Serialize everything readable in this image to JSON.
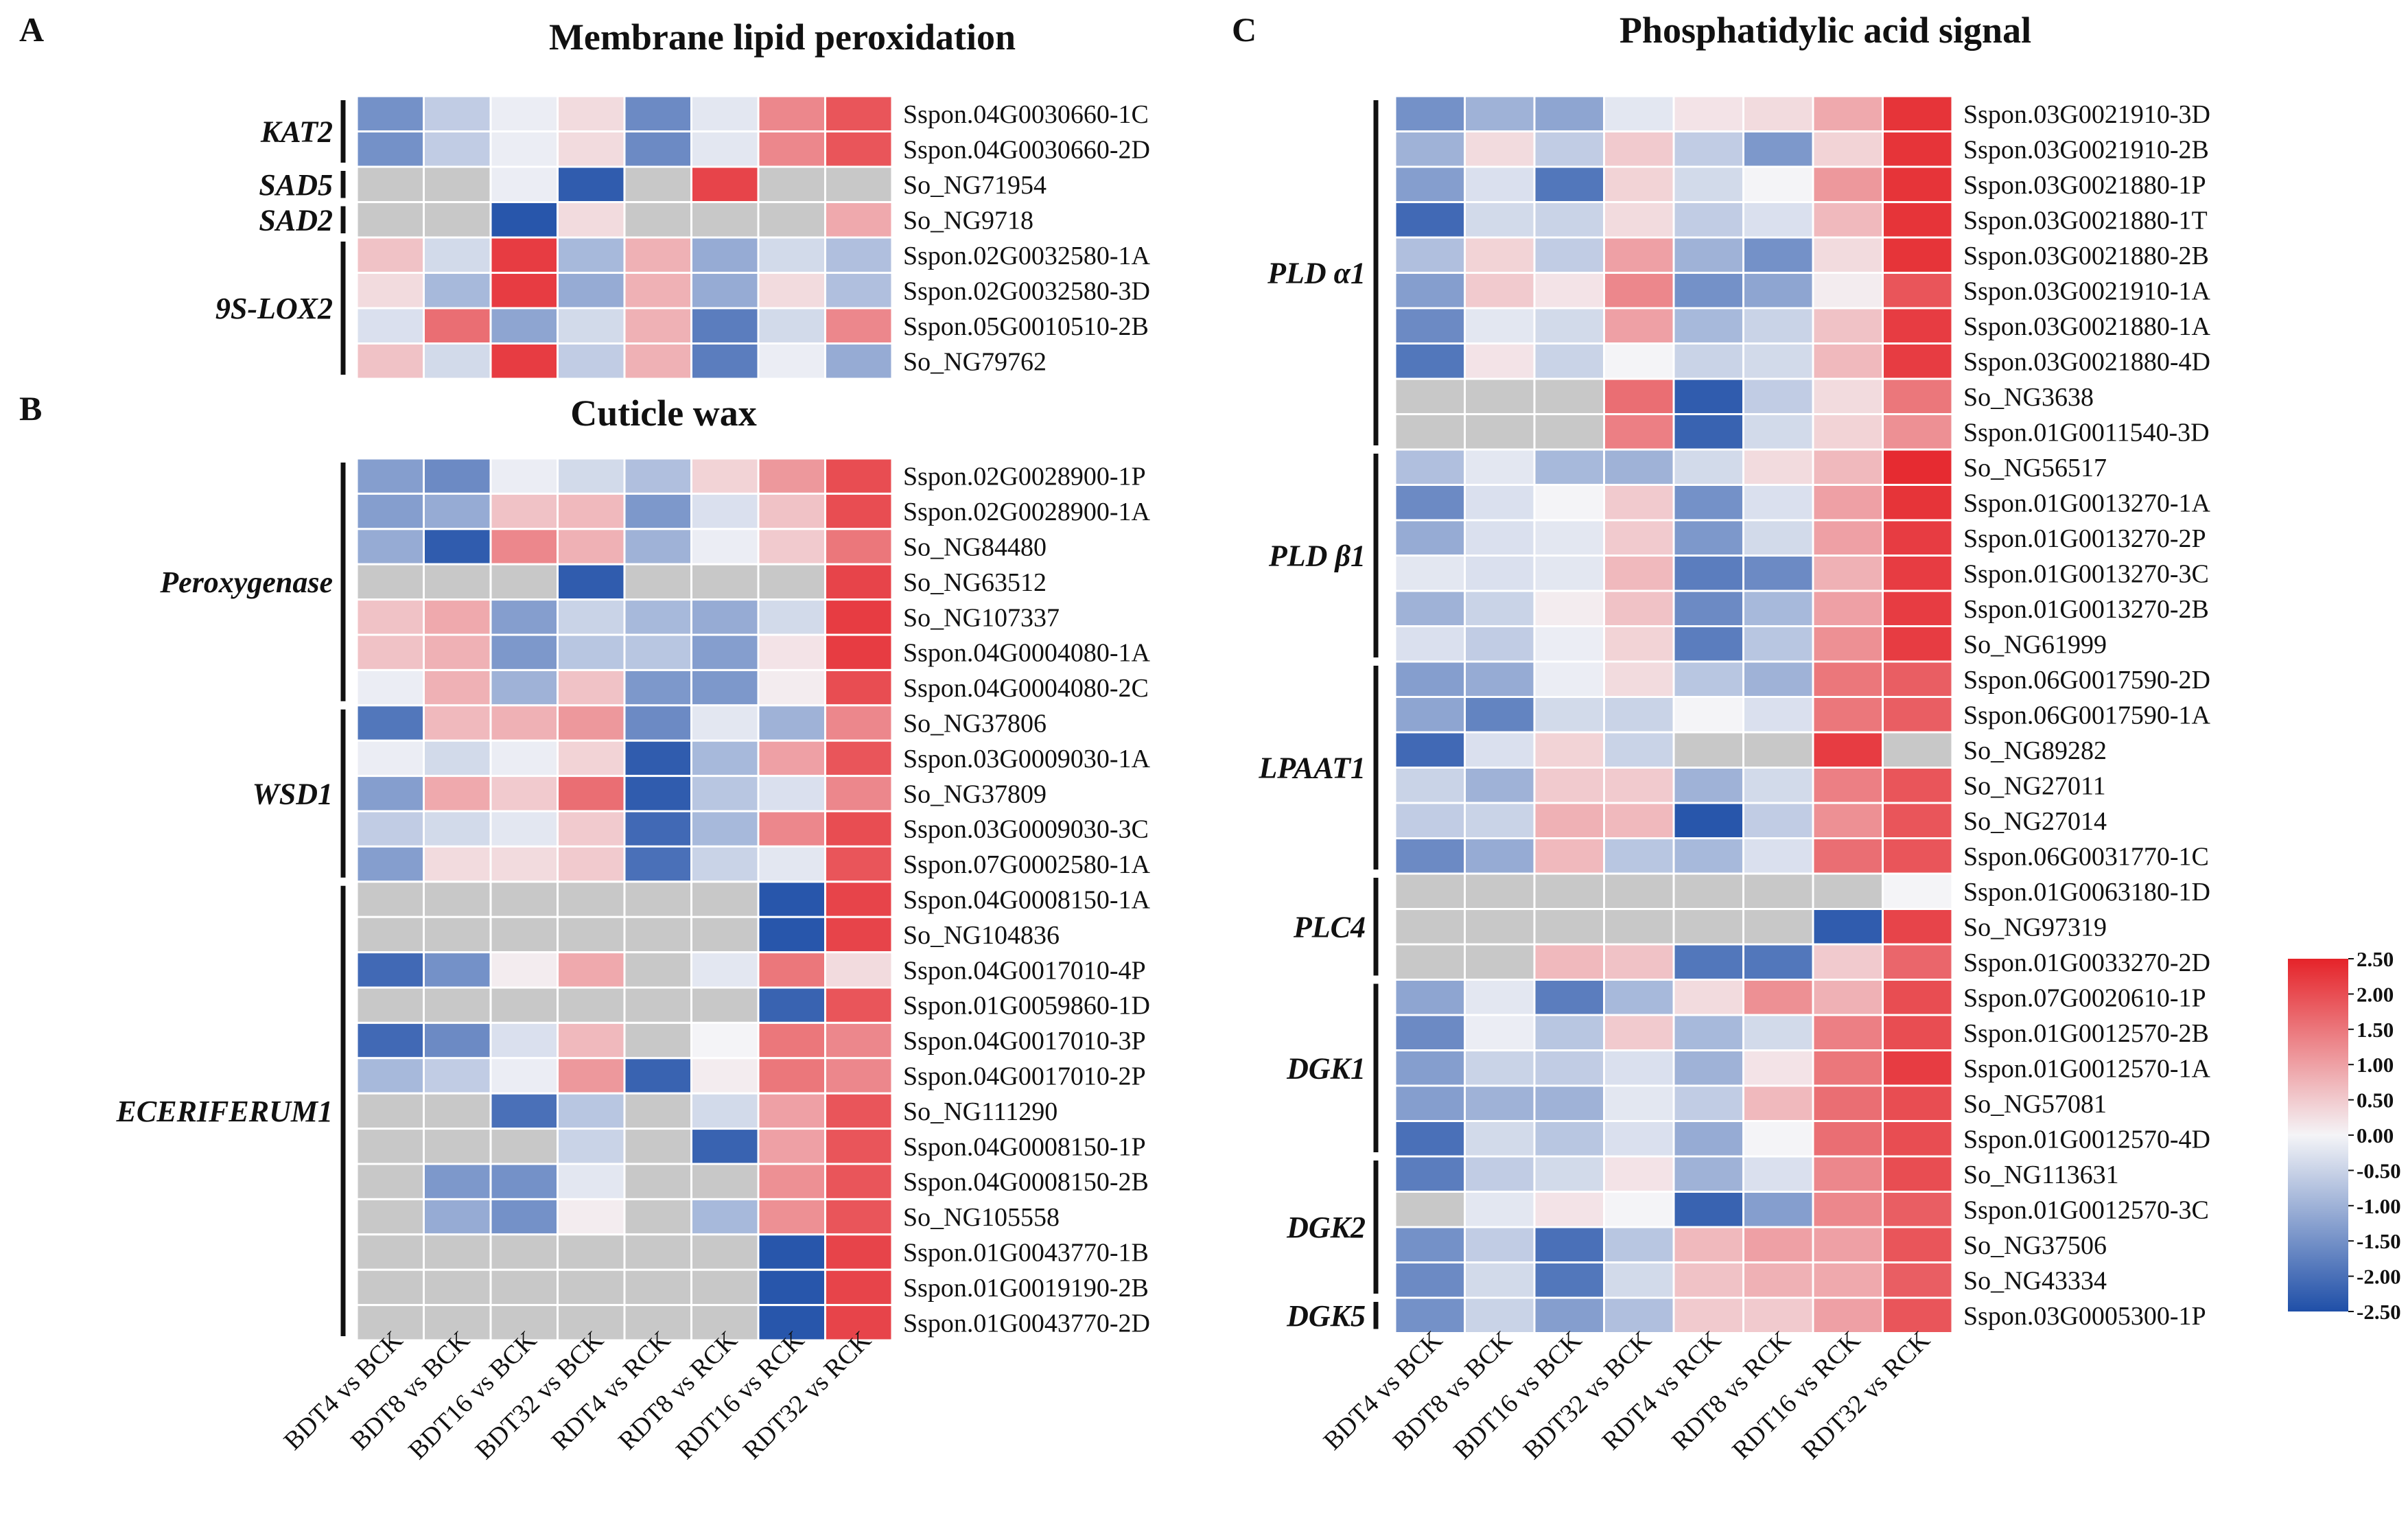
{
  "figure": {
    "colorscale": {
      "low_color": "#1f4fa8",
      "mid_color": "#f4f4f7",
      "high_color": "#e52329",
      "missing_color": "#c8c8c8",
      "min": -2.5,
      "max": 2.5,
      "tick_labels": [
        "2.50",
        "2.00",
        "1.50",
        "1.00",
        "0.50",
        "0.00",
        "-0.50",
        "-1.00",
        "-1.50",
        "-2.00",
        "-2.50"
      ]
    }
  },
  "chart_data": [
    {
      "type": "heatmap",
      "panel": "A",
      "title": "Membrane lipid peroxidation",
      "columns": [
        "BDT4 vs BCK",
        "BDT8 vs BCK",
        "BDT16 vs BCK",
        "BDT32 vs BCK",
        "RDT4 vs RCK",
        "RDT8 vs RCK",
        "RDT16 vs RCK",
        "RDT32 vs RCK"
      ],
      "show_column_labels": false,
      "rows": [
        "Sspon.04G0030660-1C",
        "Sspon.04G0030660-2D",
        "So_NG71954",
        "So_NG9718",
        "Sspon.02G0032580-1A",
        "Sspon.02G0032580-3D",
        "Sspon.05G0010510-2B",
        "So_NG79762"
      ],
      "groups": [
        {
          "label": "KAT2",
          "start": 0,
          "end": 1
        },
        {
          "label": "SAD5",
          "start": 2,
          "end": 2
        },
        {
          "label": "SAD2",
          "start": 3,
          "end": 3
        },
        {
          "label": "9S-LOX2",
          "start": 4,
          "end": 7
        }
      ],
      "values": [
        [
          -1.5,
          -0.6,
          -0.1,
          0.3,
          -1.6,
          -0.2,
          1.3,
          1.9
        ],
        [
          -1.5,
          -0.6,
          -0.1,
          0.3,
          -1.6,
          -0.2,
          1.3,
          1.9
        ],
        [
          null,
          null,
          -0.1,
          -2.3,
          null,
          2.1,
          null,
          null
        ],
        [
          null,
          null,
          -2.4,
          0.3,
          null,
          null,
          null,
          0.9
        ],
        [
          0.6,
          -0.4,
          2.2,
          -0.9,
          0.8,
          -1.1,
          -0.4,
          -0.8
        ],
        [
          0.3,
          -0.9,
          2.2,
          -1.1,
          0.8,
          -1.1,
          0.3,
          -0.8
        ],
        [
          -0.3,
          1.6,
          -1.2,
          -0.4,
          0.8,
          -1.8,
          -0.4,
          1.3
        ],
        [
          0.6,
          -0.4,
          2.2,
          -0.6,
          0.8,
          -1.8,
          -0.1,
          -1.1
        ]
      ]
    },
    {
      "type": "heatmap",
      "panel": "B",
      "title": "Cuticle wax",
      "columns": [
        "BDT4 vs BCK",
        "BDT8 vs BCK",
        "BDT16 vs BCK",
        "BDT32 vs BCK",
        "RDT4 vs RCK",
        "RDT8 vs RCK",
        "RDT16 vs RCK",
        "RDT32 vs RCK"
      ],
      "show_column_labels": true,
      "rows": [
        "Sspon.02G0028900-1P",
        "Sspon.02G0028900-1A",
        "So_NG84480",
        "So_NG63512",
        "So_NG107337",
        "Sspon.04G0004080-1A",
        "Sspon.04G0004080-2C",
        "So_NG37806",
        "Sspon.03G0009030-1A",
        "So_NG37809",
        "Sspon.03G0009030-3C",
        "Sspon.07G0002580-1A",
        "Sspon.04G0008150-1A",
        "So_NG104836",
        "Sspon.04G0017010-4P",
        "Sspon.01G0059860-1D",
        "Sspon.04G0017010-3P",
        "Sspon.04G0017010-2P",
        "So_NG111290",
        "Sspon.04G0008150-1P",
        "Sspon.04G0008150-2B",
        "So_NG105558",
        "Sspon.01G0043770-1B",
        "Sspon.01G0019190-2B",
        "Sspon.01G0043770-2D"
      ],
      "groups": [
        {
          "label": "Peroxygenase",
          "start": 0,
          "end": 6
        },
        {
          "label": "WSD1",
          "start": 7,
          "end": 11
        },
        {
          "label": "ECERIFERUM1",
          "start": 12,
          "end": 24
        }
      ],
      "values": [
        [
          -1.3,
          -1.6,
          -0.1,
          -0.4,
          -0.8,
          0.4,
          1.1,
          2.0
        ],
        [
          -1.3,
          -1.1,
          0.6,
          0.7,
          -1.4,
          -0.3,
          0.6,
          2.0
        ],
        [
          -1.1,
          -2.3,
          1.3,
          0.8,
          -1.0,
          -0.1,
          0.5,
          1.5
        ],
        [
          null,
          null,
          null,
          -2.3,
          null,
          null,
          null,
          2.1
        ],
        [
          0.6,
          0.9,
          -1.3,
          -0.5,
          -0.9,
          -1.1,
          -0.4,
          2.2
        ],
        [
          0.6,
          0.8,
          -1.4,
          -0.7,
          -0.7,
          -1.3,
          0.2,
          2.2
        ],
        [
          -0.1,
          0.8,
          -1.0,
          0.6,
          -1.4,
          -1.4,
          0.1,
          2.0
        ],
        [
          -1.9,
          0.7,
          0.8,
          1.1,
          -1.6,
          -0.2,
          -1.0,
          1.3
        ],
        [
          -0.1,
          -0.4,
          -0.1,
          0.4,
          -2.3,
          -0.9,
          1.0,
          1.9
        ],
        [
          -1.3,
          0.9,
          0.5,
          1.6,
          -2.3,
          -0.7,
          -0.3,
          1.3
        ],
        [
          -0.6,
          -0.4,
          -0.2,
          0.5,
          -2.1,
          -0.9,
          1.3,
          2.0
        ],
        [
          -1.3,
          0.3,
          0.3,
          0.5,
          -2.0,
          -0.5,
          -0.2,
          1.9
        ],
        [
          null,
          null,
          null,
          null,
          null,
          null,
          -2.4,
          2.1
        ],
        [
          null,
          null,
          null,
          null,
          null,
          null,
          -2.4,
          2.1
        ],
        [
          -2.1,
          -1.5,
          0.1,
          0.9,
          null,
          -0.2,
          1.5,
          0.3
        ],
        [
          null,
          null,
          null,
          null,
          null,
          null,
          -2.2,
          1.9
        ],
        [
          -2.1,
          -1.6,
          -0.3,
          0.7,
          null,
          0.0,
          1.5,
          1.3
        ],
        [
          -0.9,
          -0.6,
          -0.1,
          1.1,
          -2.2,
          0.1,
          1.5,
          1.3
        ],
        [
          null,
          null,
          -2.0,
          -0.7,
          null,
          -0.4,
          1.0,
          1.9
        ],
        [
          null,
          null,
          null,
          -0.5,
          null,
          -2.2,
          1.0,
          1.9
        ],
        [
          null,
          -1.4,
          -1.5,
          -0.2,
          null,
          null,
          1.2,
          1.9
        ],
        [
          null,
          -1.1,
          -1.5,
          0.1,
          null,
          -0.9,
          1.2,
          1.9
        ],
        [
          null,
          null,
          null,
          null,
          null,
          null,
          -2.4,
          2.1
        ],
        [
          null,
          null,
          null,
          null,
          null,
          null,
          -2.4,
          2.1
        ],
        [
          null,
          null,
          null,
          null,
          null,
          null,
          -2.4,
          2.1
        ]
      ]
    },
    {
      "type": "heatmap",
      "panel": "C",
      "title": "Phosphatidylic acid signal",
      "columns": [
        "BDT4 vs BCK",
        "BDT8 vs BCK",
        "BDT16 vs BCK",
        "BDT32 vs BCK",
        "RDT4 vs RCK",
        "RDT8 vs RCK",
        "RDT16 vs RCK",
        "RDT32 vs RCK"
      ],
      "show_column_labels": true,
      "rows": [
        "Sspon.03G0021910-3D",
        "Sspon.03G0021910-2B",
        "Sspon.03G0021880-1P",
        "Sspon.03G0021880-1T",
        "Sspon.03G0021880-2B",
        "Sspon.03G0021910-1A",
        "Sspon.03G0021880-1A",
        "Sspon.03G0021880-4D",
        "So_NG3638",
        "Sspon.01G0011540-3D",
        "So_NG56517",
        "Sspon.01G0013270-1A",
        "Sspon.01G0013270-2P",
        "Sspon.01G0013270-3C",
        "Sspon.01G0013270-2B",
        "So_NG61999",
        "Sspon.06G0017590-2D",
        "Sspon.06G0017590-1A",
        "So_NG89282",
        "So_NG27011",
        "So_NG27014",
        "Sspon.06G0031770-1C",
        "Sspon.01G0063180-1D",
        "So_NG97319",
        "Sspon.01G0033270-2D",
        "Sspon.07G0020610-1P",
        "Sspon.01G0012570-2B",
        "Sspon.01G0012570-1A",
        "So_NG57081",
        "Sspon.01G0012570-4D",
        "So_NG113631",
        "Sspon.01G0012570-3C",
        "So_NG37506",
        "So_NG43334",
        "Sspon.03G0005300-1P"
      ],
      "groups": [
        {
          "label": "PLD α1",
          "start": 0,
          "end": 9
        },
        {
          "label": "PLD β1",
          "start": 10,
          "end": 15
        },
        {
          "label": "LPAAT1",
          "start": 16,
          "end": 21
        },
        {
          "label": "PLC4",
          "start": 22,
          "end": 24
        },
        {
          "label": "DGK1",
          "start": 25,
          "end": 29
        },
        {
          "label": "DGK2",
          "start": 30,
          "end": 33
        },
        {
          "label": "DGK5",
          "start": 34,
          "end": 34
        }
      ],
      "values": [
        [
          -1.5,
          -1.0,
          -1.2,
          -0.2,
          0.2,
          0.3,
          0.9,
          2.3
        ],
        [
          -1.0,
          0.3,
          -0.6,
          0.5,
          -0.6,
          -1.4,
          0.4,
          2.3
        ],
        [
          -1.3,
          -0.3,
          -1.9,
          0.4,
          -0.4,
          0.0,
          1.1,
          2.3
        ],
        [
          -2.1,
          -0.4,
          -0.5,
          0.3,
          -0.6,
          -0.3,
          0.7,
          2.3
        ],
        [
          -0.8,
          0.4,
          -0.6,
          1.0,
          -1.0,
          -1.5,
          0.3,
          2.3
        ],
        [
          -1.3,
          0.5,
          0.2,
          1.3,
          -1.5,
          -1.2,
          0.1,
          1.9
        ],
        [
          -1.6,
          -0.2,
          -0.4,
          1.0,
          -0.9,
          -0.5,
          0.6,
          2.2
        ],
        [
          -1.9,
          0.2,
          -0.5,
          0.0,
          -0.5,
          -0.4,
          0.7,
          2.2
        ],
        [
          null,
          null,
          null,
          1.6,
          -2.3,
          -0.6,
          0.3,
          1.5
        ],
        [
          null,
          null,
          null,
          1.4,
          -2.2,
          -0.4,
          0.4,
          1.2
        ],
        [
          -0.8,
          -0.2,
          -0.9,
          -1.0,
          -0.4,
          0.3,
          0.7,
          2.4
        ],
        [
          -1.6,
          -0.3,
          0.0,
          0.5,
          -1.5,
          -0.3,
          1.0,
          2.3
        ],
        [
          -1.1,
          -0.3,
          -0.2,
          0.5,
          -1.4,
          -0.4,
          1.0,
          2.2
        ],
        [
          -0.2,
          -0.3,
          -0.2,
          0.7,
          -1.8,
          -1.6,
          0.8,
          2.2
        ],
        [
          -1.0,
          -0.5,
          0.1,
          0.6,
          -1.6,
          -0.9,
          1.0,
          2.2
        ],
        [
          -0.3,
          -0.6,
          -0.1,
          0.4,
          -1.8,
          -0.7,
          1.2,
          2.2
        ],
        [
          -1.3,
          -1.1,
          -0.1,
          0.3,
          -0.7,
          -1.0,
          1.5,
          1.8
        ],
        [
          -1.2,
          -1.7,
          -0.4,
          -0.5,
          0.0,
          -0.3,
          1.5,
          1.8
        ],
        [
          -2.1,
          -0.3,
          0.4,
          -0.5,
          null,
          null,
          2.2,
          null
        ],
        [
          -0.5,
          -1.0,
          0.5,
          0.5,
          -1.0,
          -0.4,
          1.4,
          1.9
        ],
        [
          -0.6,
          -0.5,
          0.8,
          0.7,
          -2.4,
          -0.6,
          1.2,
          1.9
        ],
        [
          -1.6,
          -1.1,
          0.7,
          -0.7,
          -0.9,
          -0.3,
          1.6,
          1.9
        ],
        [
          null,
          null,
          null,
          null,
          null,
          null,
          null,
          0.0
        ],
        [
          null,
          null,
          null,
          null,
          null,
          null,
          -2.3,
          2.1
        ],
        [
          null,
          null,
          0.7,
          0.6,
          -1.9,
          -1.9,
          0.5,
          1.7
        ],
        [
          -1.2,
          -0.2,
          -1.8,
          -0.9,
          0.3,
          1.2,
          0.8,
          2.0
        ],
        [
          -1.6,
          -0.1,
          -0.7,
          0.5,
          -0.9,
          -0.4,
          1.4,
          2.0
        ],
        [
          -1.3,
          -0.5,
          -0.6,
          -0.3,
          -1.0,
          0.2,
          1.5,
          2.2
        ],
        [
          -1.3,
          -1.0,
          -1.0,
          -0.2,
          -0.6,
          0.7,
          1.6,
          2.0
        ],
        [
          -2.0,
          -0.4,
          -0.7,
          -0.3,
          -1.1,
          0.0,
          1.6,
          2.0
        ],
        [
          -1.8,
          -0.6,
          -0.4,
          0.2,
          -1.0,
          -0.3,
          1.3,
          2.0
        ],
        [
          null,
          -0.2,
          0.2,
          0.0,
          -2.2,
          -1.3,
          1.3,
          1.8
        ],
        [
          -1.5,
          -0.6,
          -2.0,
          -0.7,
          0.7,
          1.0,
          1.0,
          1.9
        ],
        [
          -1.6,
          -0.4,
          -1.9,
          -0.4,
          0.6,
          0.8,
          0.9,
          1.8
        ],
        [
          -1.5,
          -0.5,
          -1.3,
          -0.8,
          0.5,
          0.5,
          1.0,
          1.9
        ]
      ]
    }
  ]
}
